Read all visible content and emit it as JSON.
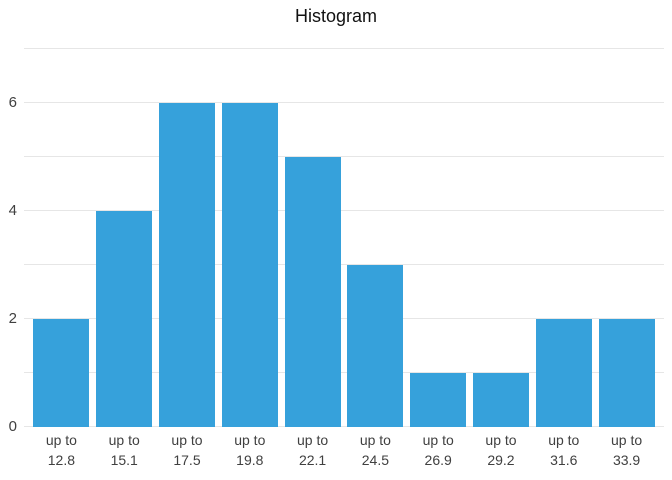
{
  "title": "Histogram",
  "colors": {
    "bar": "#36a1db",
    "grid": "#e6e6e6",
    "axis_label": "#404040",
    "title": "#111111",
    "background": "#ffffff"
  },
  "chart_data": {
    "type": "bar",
    "title": "Histogram",
    "categories": [
      "up to 12.8",
      "up to 15.1",
      "up to 17.5",
      "up to 19.8",
      "up to 22.1",
      "up to 24.5",
      "up to 26.9",
      "up to 29.2",
      "up to 31.6",
      "up to 33.9"
    ],
    "values": [
      2,
      4,
      6,
      6,
      5,
      3,
      1,
      1,
      2,
      2
    ],
    "xlabel": "",
    "ylabel": "",
    "ylim": [
      0,
      7
    ],
    "y_tick_labels": [
      0,
      2,
      4,
      6
    ],
    "gridline_values": [
      0,
      1,
      2,
      3,
      4,
      5,
      6,
      7
    ],
    "grid": true,
    "legend": false,
    "x_label_line1": "up to"
  }
}
